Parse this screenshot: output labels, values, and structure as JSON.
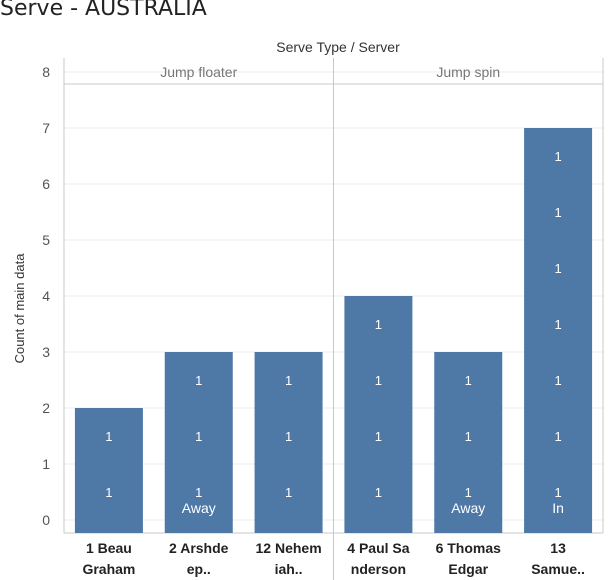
{
  "chart_data": {
    "type": "bar",
    "title": "Serve - AUSTRALIA",
    "column_header": "Serve Type  /  Server",
    "ylabel": "Count of main data",
    "ylim": [
      0,
      8
    ],
    "yticks": [
      "0",
      "1",
      "2",
      "3",
      "4",
      "5",
      "6",
      "7",
      "8"
    ],
    "colors": {
      "bar": "#4e79a7",
      "grid": "#eeeeee",
      "axis": "#c8c8c8",
      "segment_label": "#ffffff"
    },
    "groups": [
      {
        "name": "Jump floater",
        "bars": [
          {
            "label_lines": [
              "1 Beau",
              "Graham"
            ],
            "value": 2,
            "segment_labels": [
              "1",
              "1"
            ]
          },
          {
            "label_lines": [
              "2 Arshde",
              "ep.."
            ],
            "value": 3,
            "segment_labels": [
              "1",
              "1",
              "1"
            ],
            "tag": "Away"
          },
          {
            "label_lines": [
              "12 Nehem",
              "iah.."
            ],
            "value": 3,
            "segment_labels": [
              "1",
              "1",
              "1"
            ]
          }
        ]
      },
      {
        "name": "Jump spin",
        "bars": [
          {
            "label_lines": [
              "4 Paul Sa",
              "nderson"
            ],
            "value": 4,
            "segment_labels": [
              "1",
              "1",
              "1",
              "1"
            ]
          },
          {
            "label_lines": [
              "6 Thomas",
              "Edgar"
            ],
            "value": 3,
            "segment_labels": [
              "1",
              "1",
              "1"
            ],
            "tag": "Away"
          },
          {
            "label_lines": [
              "13",
              "Samue.."
            ],
            "value": 7,
            "segment_labels": [
              "1",
              "1",
              "1",
              "1",
              "1",
              "1",
              "1"
            ],
            "tag": "In"
          }
        ]
      }
    ]
  }
}
